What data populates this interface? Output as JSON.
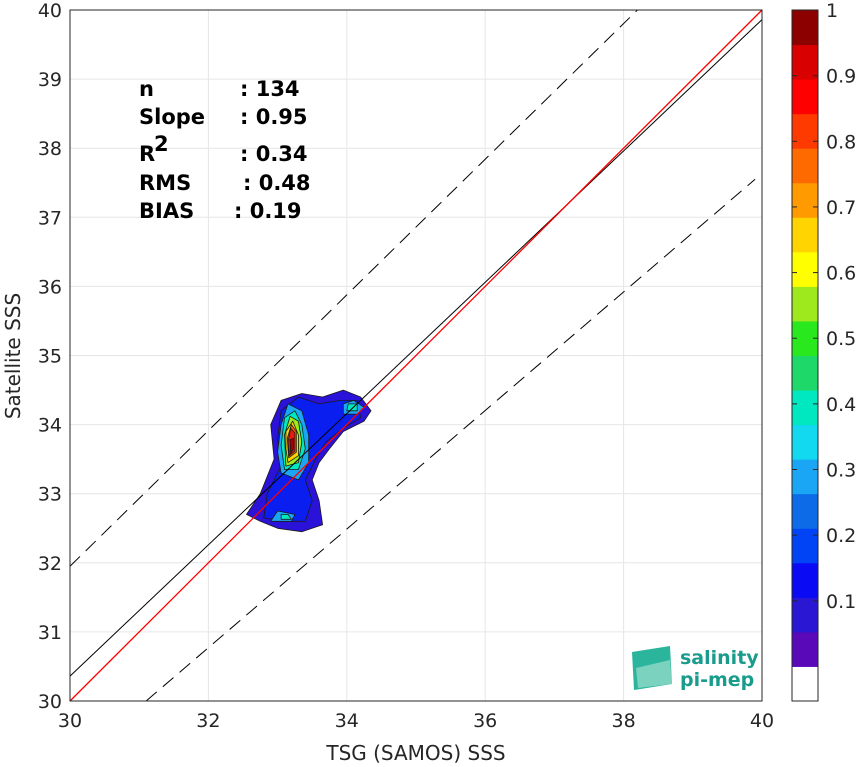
{
  "chart_data": {
    "type": "contour-scatter",
    "xlabel": "TSG (SAMOS) SSS",
    "ylabel": "Satellite SSS",
    "xlim": [
      30,
      40
    ],
    "ylim": [
      30,
      40
    ],
    "xticks": [
      "30",
      "32",
      "34",
      "36",
      "38",
      "40"
    ],
    "yticks": [
      "30",
      "31",
      "32",
      "33",
      "34",
      "35",
      "36",
      "37",
      "38",
      "39",
      "40"
    ],
    "grid": true,
    "lines": {
      "identity": {
        "color": "#ff0000",
        "x": [
          30,
          40
        ],
        "y": [
          30,
          40
        ]
      },
      "regression": {
        "color": "#000000",
        "x": [
          30,
          40
        ],
        "y": [
          30.36,
          39.86
        ]
      },
      "upper_bound": {
        "color": "#000000",
        "style": "dashed",
        "x": [
          30,
          38.2
        ],
        "y": [
          31.95,
          40
        ]
      },
      "lower_bound": {
        "color": "#000000",
        "style": "dashed",
        "x": [
          31.1,
          39.9
        ],
        "y": [
          30,
          37.55
        ]
      }
    },
    "stats": [
      {
        "label": "n",
        "value": ": 134"
      },
      {
        "label": "Slope",
        "value": ": 0.95"
      },
      {
        "label": "R",
        "sup": "2",
        "value": ": 0.34"
      },
      {
        "label": "RMS",
        "value": ": 0.48"
      },
      {
        "label": "BIAS",
        "value": ": 0.19"
      }
    ],
    "density_contours": [
      {
        "level": 0.05,
        "color": "#2b12d8",
        "points": [
          [
            32.75,
            32.6
          ],
          [
            33.0,
            32.5
          ],
          [
            33.35,
            32.45
          ],
          [
            33.65,
            32.55
          ],
          [
            33.6,
            32.9
          ],
          [
            33.5,
            33.2
          ],
          [
            33.6,
            33.45
          ],
          [
            33.75,
            33.65
          ],
          [
            33.95,
            33.9
          ],
          [
            34.25,
            34.05
          ],
          [
            34.35,
            34.2
          ],
          [
            34.2,
            34.4
          ],
          [
            33.95,
            34.5
          ],
          [
            33.65,
            34.4
          ],
          [
            33.35,
            34.45
          ],
          [
            33.05,
            34.35
          ],
          [
            32.9,
            34.0
          ],
          [
            32.95,
            33.5
          ],
          [
            32.75,
            33.0
          ],
          [
            32.55,
            32.7
          ]
        ]
      },
      {
        "level": 0.15,
        "color": "#0a1ef0",
        "points": [
          [
            32.8,
            32.65
          ],
          [
            33.1,
            32.6
          ],
          [
            33.4,
            32.6
          ],
          [
            33.5,
            32.9
          ],
          [
            33.4,
            33.2
          ],
          [
            33.55,
            33.5
          ],
          [
            33.7,
            33.75
          ],
          [
            33.95,
            33.95
          ],
          [
            34.2,
            34.1
          ],
          [
            34.15,
            34.35
          ],
          [
            33.9,
            34.35
          ],
          [
            33.6,
            34.3
          ],
          [
            33.3,
            34.4
          ],
          [
            33.05,
            34.2
          ],
          [
            33.0,
            33.8
          ],
          [
            33.05,
            33.4
          ],
          [
            32.85,
            33.0
          ]
        ]
      },
      {
        "level": 0.3,
        "color": "#1aa6f5",
        "points": [
          [
            33.05,
            33.3
          ],
          [
            33.3,
            33.2
          ],
          [
            33.45,
            33.45
          ],
          [
            33.45,
            33.85
          ],
          [
            33.35,
            34.2
          ],
          [
            33.15,
            34.3
          ],
          [
            33.05,
            34.0
          ],
          [
            33.0,
            33.6
          ]
        ]
      },
      {
        "level": 0.45,
        "color": "#00e8c0",
        "points": [
          [
            33.1,
            33.35
          ],
          [
            33.3,
            33.35
          ],
          [
            33.4,
            33.65
          ],
          [
            33.35,
            34.0
          ],
          [
            33.25,
            34.2
          ],
          [
            33.1,
            34.1
          ],
          [
            33.05,
            33.7
          ]
        ]
      },
      {
        "level": 0.6,
        "color": "#9ee81e",
        "points": [
          [
            33.12,
            33.4
          ],
          [
            33.3,
            33.45
          ],
          [
            33.35,
            33.75
          ],
          [
            33.3,
            34.05
          ],
          [
            33.18,
            34.12
          ],
          [
            33.1,
            33.85
          ]
        ]
      },
      {
        "level": 0.7,
        "color": "#ffd400",
        "points": [
          [
            33.15,
            33.45
          ],
          [
            33.3,
            33.55
          ],
          [
            33.3,
            33.85
          ],
          [
            33.22,
            34.05
          ],
          [
            33.12,
            33.9
          ],
          [
            33.12,
            33.65
          ]
        ]
      },
      {
        "level": 0.8,
        "color": "#ff6a00",
        "points": [
          [
            33.16,
            33.52
          ],
          [
            33.27,
            33.6
          ],
          [
            33.27,
            33.9
          ],
          [
            33.2,
            34.0
          ],
          [
            33.14,
            33.8
          ]
        ]
      },
      {
        "level": 0.9,
        "color": "#e81a0c",
        "points": [
          [
            33.17,
            33.55
          ],
          [
            33.25,
            33.62
          ],
          [
            33.25,
            33.88
          ],
          [
            33.19,
            33.95
          ],
          [
            33.15,
            33.75
          ]
        ]
      },
      {
        "level": 1.0,
        "color": "#a80000",
        "points": [
          [
            33.19,
            33.58
          ],
          [
            33.23,
            33.65
          ],
          [
            33.23,
            33.8
          ],
          [
            33.18,
            33.78
          ]
        ]
      },
      {
        "level": 0.3,
        "color": "#1aa6f5",
        "points": [
          [
            33.95,
            34.15
          ],
          [
            34.15,
            34.15
          ],
          [
            34.25,
            34.25
          ],
          [
            34.1,
            34.35
          ],
          [
            33.95,
            34.3
          ]
        ]
      },
      {
        "level": 0.45,
        "color": "#00e8c0",
        "points": [
          [
            34.0,
            34.2
          ],
          [
            34.15,
            34.2
          ],
          [
            34.15,
            34.3
          ],
          [
            34.02,
            34.3
          ]
        ]
      },
      {
        "level": 0.3,
        "color": "#1aa6f5",
        "points": [
          [
            32.9,
            32.6
          ],
          [
            33.2,
            32.6
          ],
          [
            33.25,
            32.7
          ],
          [
            33.0,
            32.75
          ]
        ]
      },
      {
        "level": 0.45,
        "color": "#00e8c0",
        "points": [
          [
            33.05,
            32.63
          ],
          [
            33.2,
            32.63
          ],
          [
            33.15,
            32.7
          ],
          [
            33.05,
            32.7
          ]
        ]
      }
    ],
    "colorbar": {
      "ticks": [
        "0.1",
        "0.2",
        "0.3",
        "0.4",
        "0.5",
        "0.6",
        "0.7",
        "0.8",
        "0.9",
        "1"
      ],
      "colors": [
        "#ffffff",
        "#5a09b8",
        "#2a17d3",
        "#0a0af5",
        "#0044f5",
        "#0d6be8",
        "#1aa6f5",
        "#12d8f0",
        "#00e8c0",
        "#1ed86a",
        "#2ae81e",
        "#9ee81e",
        "#ffff00",
        "#ffd400",
        "#ff9a00",
        "#ff6a00",
        "#ff3a00",
        "#ff0000",
        "#d80000",
        "#8c0000"
      ]
    }
  },
  "logo": {
    "line1": "salinity",
    "line2": "pi-mep"
  }
}
